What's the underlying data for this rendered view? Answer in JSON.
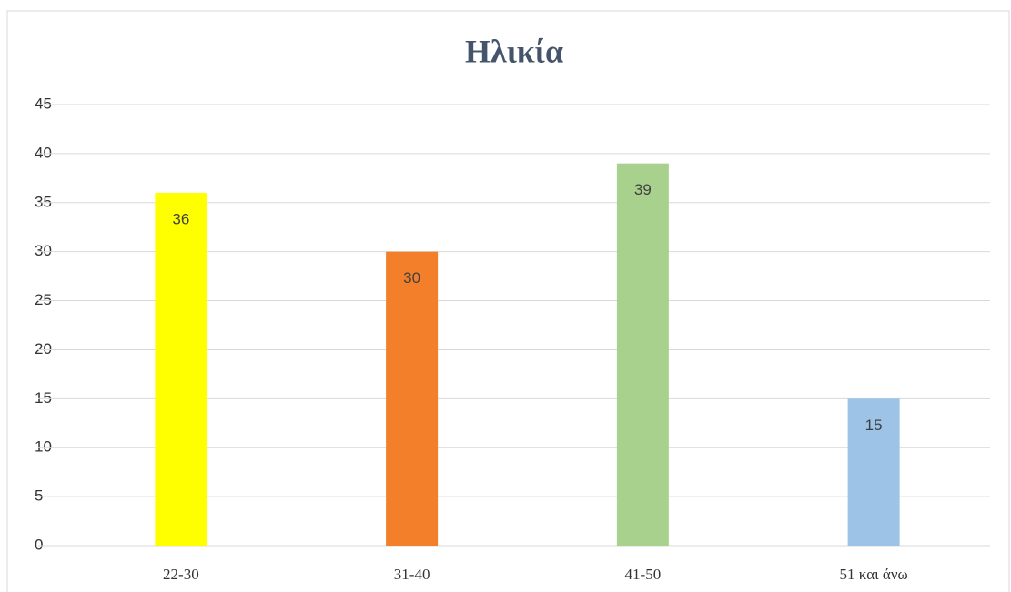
{
  "chart_data": {
    "type": "bar",
    "title": "Ηλικία",
    "categories": [
      "22-30",
      "31-40",
      "41-50",
      "51 και άνω"
    ],
    "values": [
      36,
      30,
      39,
      15
    ],
    "colors": [
      "#ffff00",
      "#f47f2a",
      "#a9d18e",
      "#9dc3e6"
    ],
    "ylim": [
      0,
      45
    ],
    "yticks": [
      0,
      5,
      10,
      15,
      20,
      25,
      30,
      35,
      40,
      45
    ],
    "grid": true
  }
}
